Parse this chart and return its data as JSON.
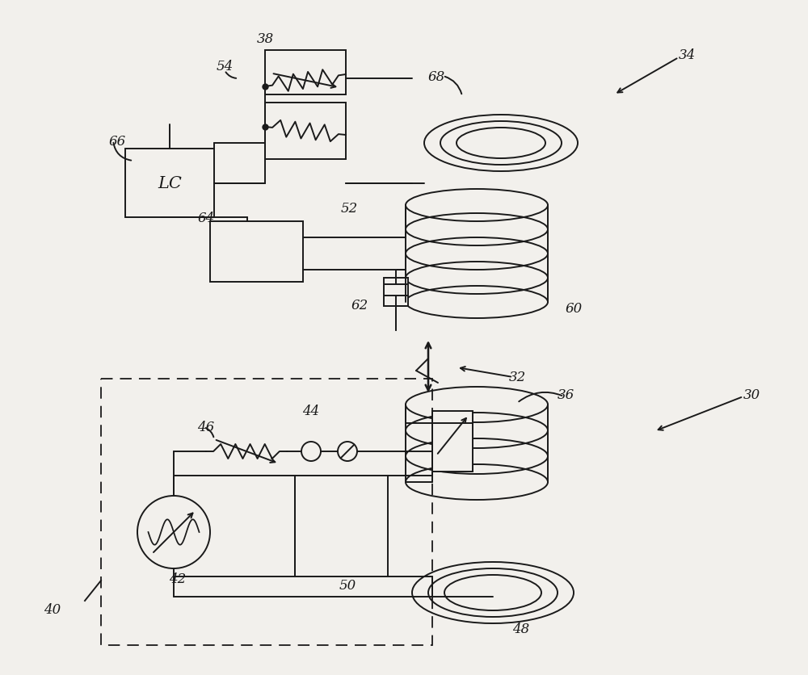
{
  "bg_color": "#f2f0ec",
  "line_color": "#1a1a1a",
  "fig_width": 10.0,
  "fig_height": 8.37,
  "dpi": 100
}
